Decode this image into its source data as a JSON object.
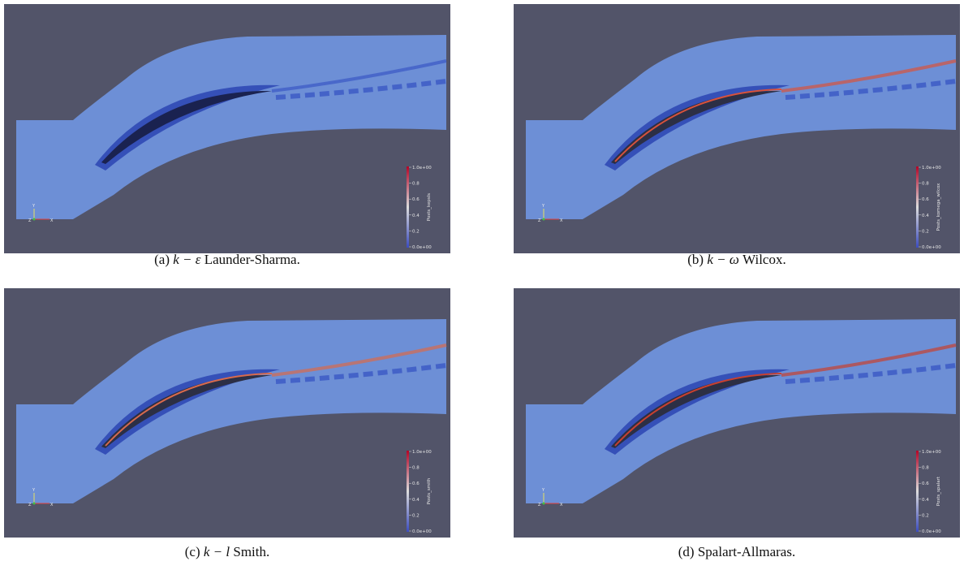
{
  "figure": {
    "colorbar_ticks": [
      "1.0e+00",
      "0.8",
      "0.6",
      "0.4",
      "0.2",
      "0.0e+00"
    ],
    "axes_labels": [
      "Y",
      "Z",
      "X"
    ],
    "panels": [
      {
        "label": "(a)",
        "math": "k − ε",
        "name": "Launder-Sharma.",
        "colorbar_title": "Posts_kepsls"
      },
      {
        "label": "(b)",
        "math": "k − ω",
        "name": "Wilcox.",
        "colorbar_title": "Posts_komega_wilcox"
      },
      {
        "label": "(c)",
        "math": "k − l",
        "name": "Smith.",
        "colorbar_title": "Posts_smith"
      },
      {
        "label": "(d)",
        "name": "Spalart-Allmaras.",
        "colorbar_title": "Posts_spalart"
      }
    ]
  }
}
